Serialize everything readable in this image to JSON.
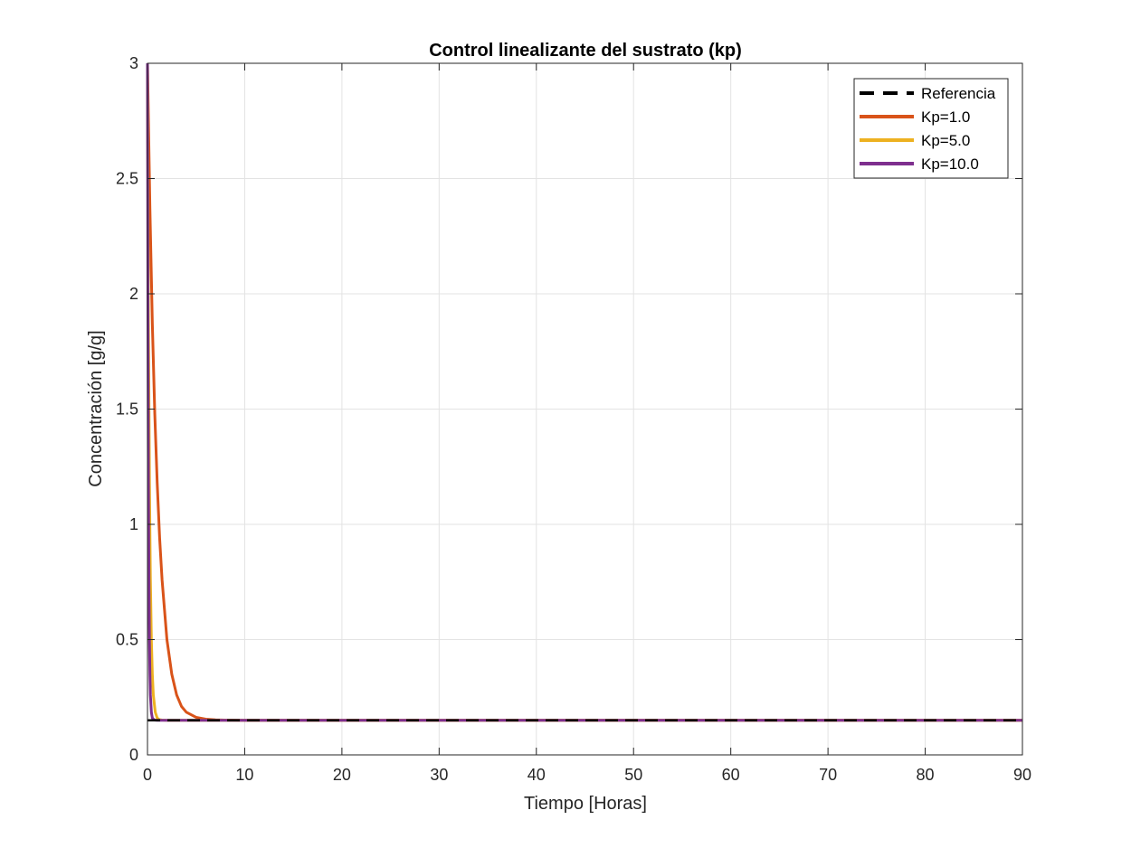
{
  "chart_data": {
    "type": "line",
    "title": "Control linealizante del sustrato (kp)",
    "xlabel": "Tiempo [Horas]",
    "ylabel": "Concentración [g/g]",
    "xlim": [
      0,
      90
    ],
    "ylim": [
      0,
      3
    ],
    "xticks": [
      0,
      10,
      20,
      30,
      40,
      50,
      60,
      70,
      80,
      90
    ],
    "yticks": [
      0,
      0.5,
      1,
      1.5,
      2,
      2.5,
      3
    ],
    "xtick_labels": [
      "0",
      "10",
      "20",
      "30",
      "40",
      "50",
      "60",
      "70",
      "80",
      "90"
    ],
    "ytick_labels": [
      "0",
      "0.5",
      "1",
      "1.5",
      "2",
      "2.5",
      "3"
    ],
    "grid": true,
    "legend_position": "top-right",
    "series": [
      {
        "name": "Referencia",
        "color": "#000000",
        "style": "dashed",
        "x": [
          0,
          90
        ],
        "y": [
          0.15,
          0.15
        ]
      },
      {
        "name": "Kp=1.0",
        "color": "#D95319",
        "style": "solid",
        "x": [
          0,
          0.25,
          0.5,
          0.75,
          1,
          1.25,
          1.5,
          2,
          2.5,
          3,
          3.5,
          4,
          5,
          6,
          7,
          8,
          10,
          15,
          20,
          30,
          40,
          50,
          60,
          70,
          80,
          90
        ],
        "y": [
          3.0,
          2.37,
          1.87,
          1.48,
          1.18,
          0.94,
          0.76,
          0.5,
          0.35,
          0.26,
          0.21,
          0.185,
          0.163,
          0.155,
          0.152,
          0.151,
          0.15,
          0.15,
          0.15,
          0.15,
          0.15,
          0.15,
          0.15,
          0.15,
          0.15,
          0.15
        ]
      },
      {
        "name": "Kp=5.0",
        "color": "#EDB120",
        "style": "solid",
        "x": [
          0,
          0.1,
          0.2,
          0.3,
          0.4,
          0.5,
          0.6,
          0.8,
          1.0,
          1.2,
          1.5,
          2,
          5,
          10,
          20,
          30,
          40,
          50,
          60,
          70,
          80,
          90
        ],
        "y": [
          3.0,
          1.88,
          1.19,
          0.76,
          0.5,
          0.35,
          0.26,
          0.185,
          0.16,
          0.153,
          0.151,
          0.15,
          0.15,
          0.15,
          0.15,
          0.15,
          0.15,
          0.15,
          0.15,
          0.15,
          0.15,
          0.15
        ]
      },
      {
        "name": "Kp=10.0",
        "color": "#7E2F8E",
        "style": "solid",
        "x": [
          0,
          0.05,
          0.1,
          0.15,
          0.2,
          0.25,
          0.3,
          0.4,
          0.5,
          0.7,
          1,
          5,
          10,
          20,
          30,
          40,
          50,
          60,
          70,
          80,
          90
        ],
        "y": [
          3.0,
          1.88,
          1.19,
          0.76,
          0.5,
          0.35,
          0.26,
          0.185,
          0.16,
          0.151,
          0.15,
          0.15,
          0.15,
          0.15,
          0.15,
          0.15,
          0.15,
          0.15,
          0.15,
          0.15,
          0.15
        ]
      }
    ]
  }
}
